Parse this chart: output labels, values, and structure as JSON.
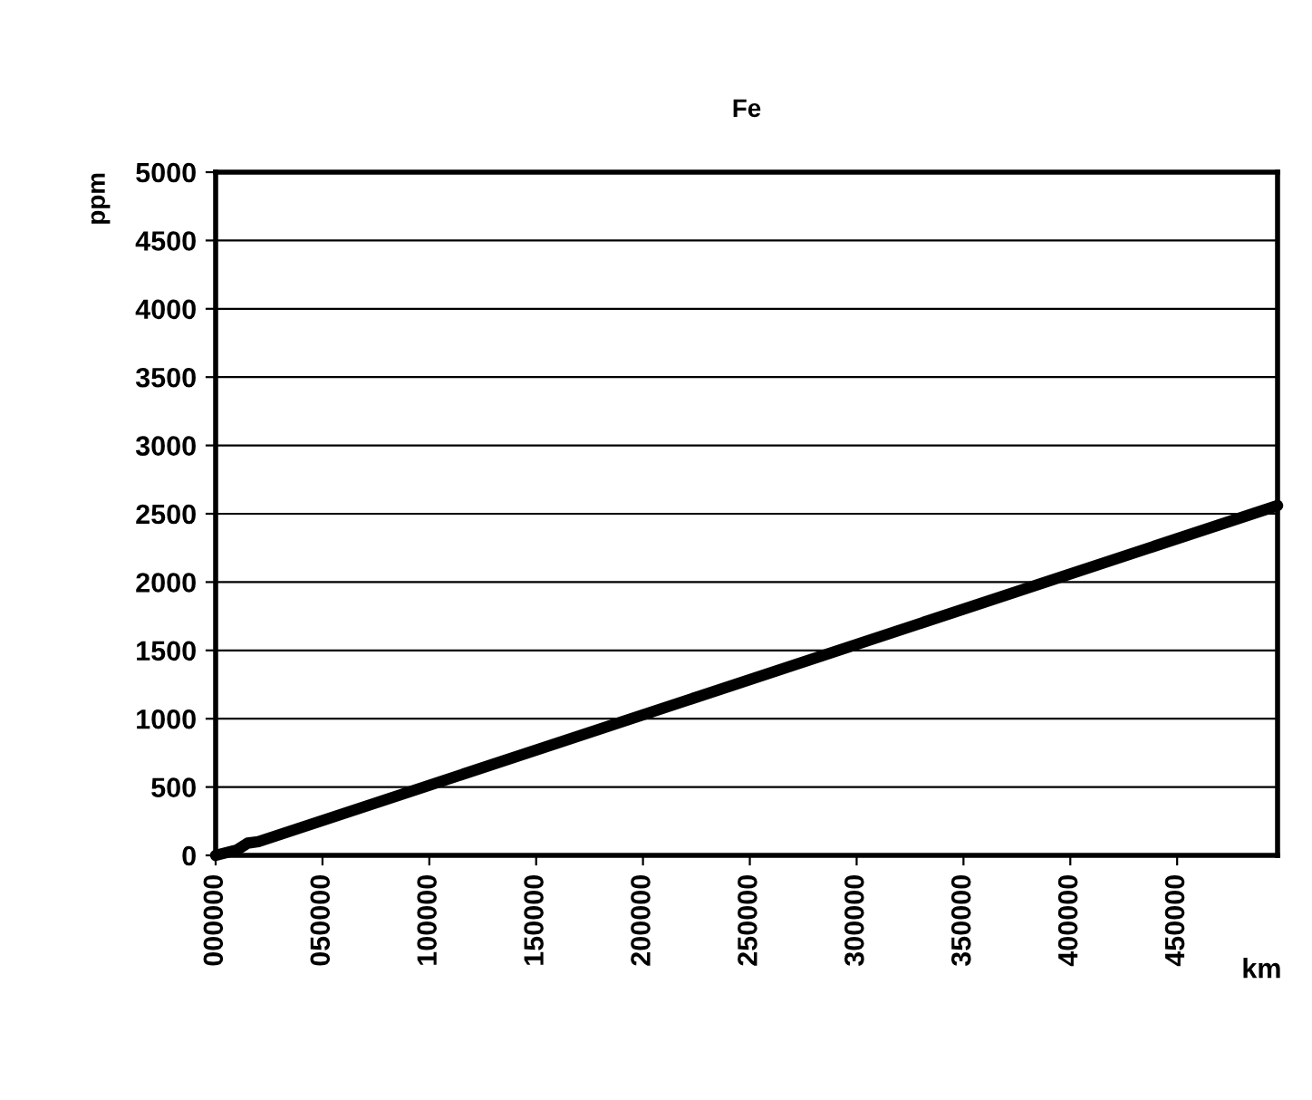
{
  "chart_data": {
    "type": "line",
    "title": "Fe",
    "xlabel": "km",
    "ylabel": "ppm",
    "x": [
      0,
      5000,
      10000,
      15000,
      20000,
      497000
    ],
    "series": [
      {
        "color": "#000000",
        "values": [
          0,
          20,
          40,
          90,
          100,
          2560
        ]
      }
    ],
    "xlim": [
      0,
      497000
    ],
    "xticks": [
      {
        "value": 0,
        "label": "000000"
      },
      {
        "value": 50000,
        "label": "050000"
      },
      100000,
      150000,
      200000,
      250000,
      300000,
      350000,
      400000,
      450000
    ],
    "ylim": [
      0,
      5000
    ],
    "yticks": [
      0,
      500,
      1000,
      1500,
      2000,
      2500,
      3000,
      3500,
      4000,
      4500,
      5000
    ],
    "grid": "y",
    "legend": false,
    "marker": "none",
    "line_style": "solid"
  }
}
